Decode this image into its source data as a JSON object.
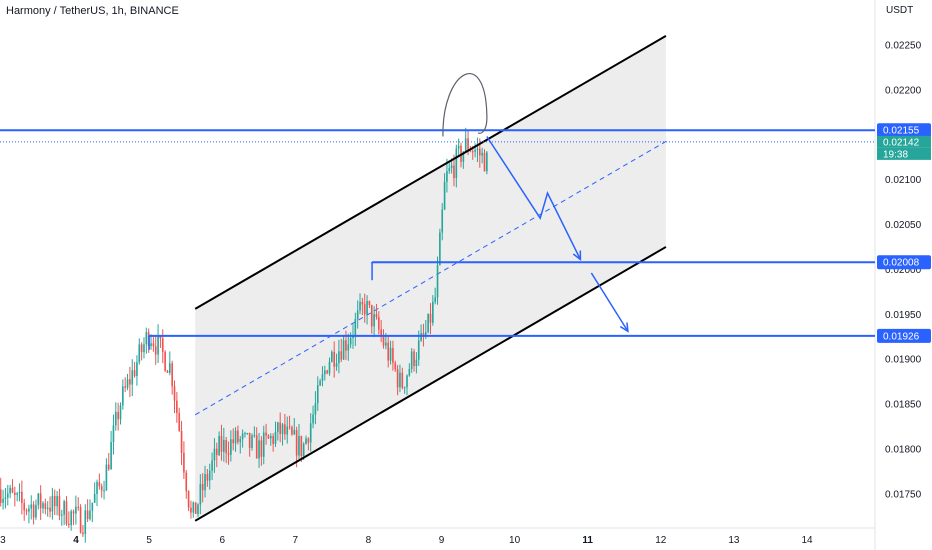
{
  "header": {
    "title": "Harmony / TetherUS, 1h, BINANCE",
    "currency": "USDT"
  },
  "chart_data": {
    "type": "candlestick",
    "symbol": "Harmony / TetherUS",
    "interval": "1h",
    "exchange": "BINANCE",
    "y_unit": "USDT",
    "ylim": [
      0.01712,
      0.023
    ],
    "y_ticks": [
      0.0175,
      0.018,
      0.0185,
      0.019,
      0.0195,
      0.02,
      0.0205,
      0.021,
      0.0215,
      0.022,
      0.0225
    ],
    "y_tick_labels": [
      "0.01750",
      "0.01800",
      "0.01850",
      "0.01900",
      "0.01950",
      "0.02000",
      "0.02050",
      "0.02100",
      "0.02150",
      "0.02200",
      "0.02250"
    ],
    "x_ticks": [
      {
        "day": 3,
        "label": "3",
        "bold": false
      },
      {
        "day": 4,
        "label": "4",
        "bold": true
      },
      {
        "day": 5,
        "label": "5",
        "bold": false
      },
      {
        "day": 6,
        "label": "6",
        "bold": false
      },
      {
        "day": 7,
        "label": "7",
        "bold": false
      },
      {
        "day": 8,
        "label": "8",
        "bold": false
      },
      {
        "day": 9,
        "label": "9",
        "bold": false
      },
      {
        "day": 10,
        "label": "10",
        "bold": false
      },
      {
        "day": 11,
        "label": "11",
        "bold": true
      },
      {
        "day": 12,
        "label": "12",
        "bold": false
      },
      {
        "day": 13,
        "label": "13",
        "bold": false
      },
      {
        "day": 14,
        "label": "14",
        "bold": false
      }
    ],
    "xlim": [
      2.96,
      14.93
    ],
    "price_path": [
      [
        2.97,
        0.01755
      ],
      [
        3.3,
        0.01735
      ],
      [
        3.6,
        0.0174
      ],
      [
        3.85,
        0.0173
      ],
      [
        4.1,
        0.0172
      ],
      [
        4.4,
        0.0177
      ],
      [
        4.6,
        0.0185
      ],
      [
        4.85,
        0.019
      ],
      [
        5.0,
        0.0193
      ],
      [
        5.15,
        0.0191
      ],
      [
        5.3,
        0.0189
      ],
      [
        5.45,
        0.018
      ],
      [
        5.58,
        0.0172
      ],
      [
        5.75,
        0.0176
      ],
      [
        5.95,
        0.018
      ],
      [
        6.2,
        0.0181
      ],
      [
        6.5,
        0.018
      ],
      [
        6.8,
        0.0182
      ],
      [
        7.1,
        0.018
      ],
      [
        7.25,
        0.0184
      ],
      [
        7.45,
        0.019
      ],
      [
        7.7,
        0.0192
      ],
      [
        7.95,
        0.0196
      ],
      [
        8.15,
        0.0193
      ],
      [
        8.3,
        0.019
      ],
      [
        8.45,
        0.0187
      ],
      [
        8.6,
        0.019
      ],
      [
        8.8,
        0.0193
      ],
      [
        8.92,
        0.0197
      ],
      [
        8.98,
        0.0203
      ],
      [
        9.05,
        0.021
      ],
      [
        9.2,
        0.0212
      ],
      [
        9.35,
        0.0214
      ],
      [
        9.5,
        0.0213
      ],
      [
        9.62,
        0.0212
      ]
    ],
    "candle_samples": 208,
    "last_price": "0.02142",
    "countdown": "19:38",
    "channel": {
      "start_day": 5.63,
      "end_day": 12.07,
      "upper": [
        0.01956,
        0.0226
      ],
      "lower": [
        0.0172,
        0.02025
      ]
    },
    "levels": [
      {
        "price": 0.02155,
        "label": "0.02155",
        "from_day": 2.96
      },
      {
        "price": 0.02008,
        "label": "0.02008",
        "from_day": 8.05
      },
      {
        "price": 0.01926,
        "label": "0.01926",
        "from_day": 5.0
      }
    ],
    "projection_path": [
      [
        9.62,
        0.02148
      ],
      [
        10.35,
        0.02057
      ],
      [
        10.45,
        0.02085
      ],
      [
        10.9,
        0.02011
      ]
    ],
    "projection_arrow_2": [
      [
        11.05,
        0.01996
      ],
      [
        11.55,
        0.01931
      ]
    ],
    "colors": {
      "up": "#26a69a",
      "down": "#ef5350",
      "level": "#2962ff",
      "channel_fill": "#e6e6e6",
      "channel_line": "#000000",
      "last_price_badge": "#2962ff",
      "countdown_badge": "#26a69a"
    }
  }
}
